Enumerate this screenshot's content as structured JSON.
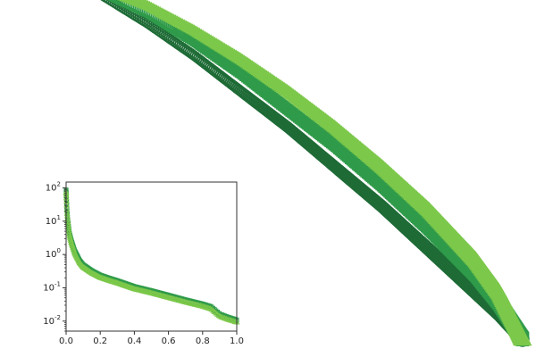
{
  "colors": {
    "dark": "#1e6b36",
    "medium": "#2f9b4a",
    "light": "#7cc84a",
    "frame": "#333333",
    "background": "#ffffff"
  },
  "chart_data": [
    {
      "type": "scatter",
      "description_visible": "main panel, cropped; no axes or labels visible",
      "x_axis": {
        "scale": "linear",
        "visible": false
      },
      "y_axis": {
        "scale": "linear",
        "visible": false
      },
      "grid": false,
      "legend": "none",
      "markers": [
        "circle",
        "square",
        "triangle"
      ],
      "series": [
        {
          "marker": "circle",
          "color": "#1e6b36",
          "x": [
            0.0,
            0.1,
            0.2,
            0.3,
            0.4,
            0.5,
            0.6,
            0.7,
            0.8,
            0.9,
            0.95,
            1.0
          ],
          "y": [
            1.0,
            0.96,
            0.88,
            0.79,
            0.69,
            0.59,
            0.48,
            0.37,
            0.25,
            0.13,
            0.07,
            0.0
          ]
        },
        {
          "marker": "square",
          "color": "#2f9b4a",
          "x": [
            0.0,
            0.1,
            0.2,
            0.3,
            0.4,
            0.5,
            0.6,
            0.7,
            0.8,
            0.9,
            0.95,
            1.0
          ],
          "y": [
            1.0,
            0.97,
            0.91,
            0.83,
            0.74,
            0.64,
            0.54,
            0.43,
            0.31,
            0.18,
            0.1,
            0.0
          ]
        },
        {
          "marker": "triangle",
          "color": "#7cc84a",
          "x": [
            0.0,
            0.1,
            0.2,
            0.3,
            0.4,
            0.5,
            0.6,
            0.7,
            0.8,
            0.9,
            0.95,
            1.0
          ],
          "y": [
            1.0,
            0.98,
            0.93,
            0.86,
            0.78,
            0.69,
            0.59,
            0.48,
            0.36,
            0.22,
            0.13,
            0.0
          ]
        }
      ]
    },
    {
      "type": "scatter",
      "description_visible": "inset panel",
      "x_axis": {
        "scale": "linear",
        "range": [
          0.0,
          1.0
        ],
        "ticks": [
          0.0,
          0.2,
          0.4,
          0.6,
          0.8,
          1.0
        ],
        "tick_labels": [
          "0.0",
          "0.2",
          "0.4",
          "0.6",
          "0.8",
          "1.0"
        ]
      },
      "y_axis": {
        "scale": "log",
        "range": [
          0.005,
          150
        ],
        "ticks": [
          0.01,
          0.1,
          1,
          10,
          100
        ],
        "tick_labels": [
          {
            "base": "10",
            "exp": "-2"
          },
          {
            "base": "10",
            "exp": "-1"
          },
          {
            "base": "10",
            "exp": "0"
          },
          {
            "base": "10",
            "exp": "1"
          },
          {
            "base": "10",
            "exp": "2"
          }
        ]
      },
      "grid": false,
      "legend": "none",
      "markers": [
        "circle",
        "square",
        "triangle"
      ],
      "x": [
        0.0,
        0.005,
        0.01,
        0.02,
        0.03,
        0.05,
        0.08,
        0.1,
        0.15,
        0.2,
        0.25,
        0.3,
        0.4,
        0.5,
        0.6,
        0.7,
        0.8,
        0.85,
        0.9,
        0.95,
        1.0
      ],
      "y_shared": [
        80,
        20,
        10,
        4,
        2.5,
        1.2,
        0.6,
        0.45,
        0.3,
        0.22,
        0.18,
        0.15,
        0.1,
        0.075,
        0.055,
        0.04,
        0.03,
        0.025,
        0.015,
        0.012,
        0.01
      ]
    }
  ]
}
